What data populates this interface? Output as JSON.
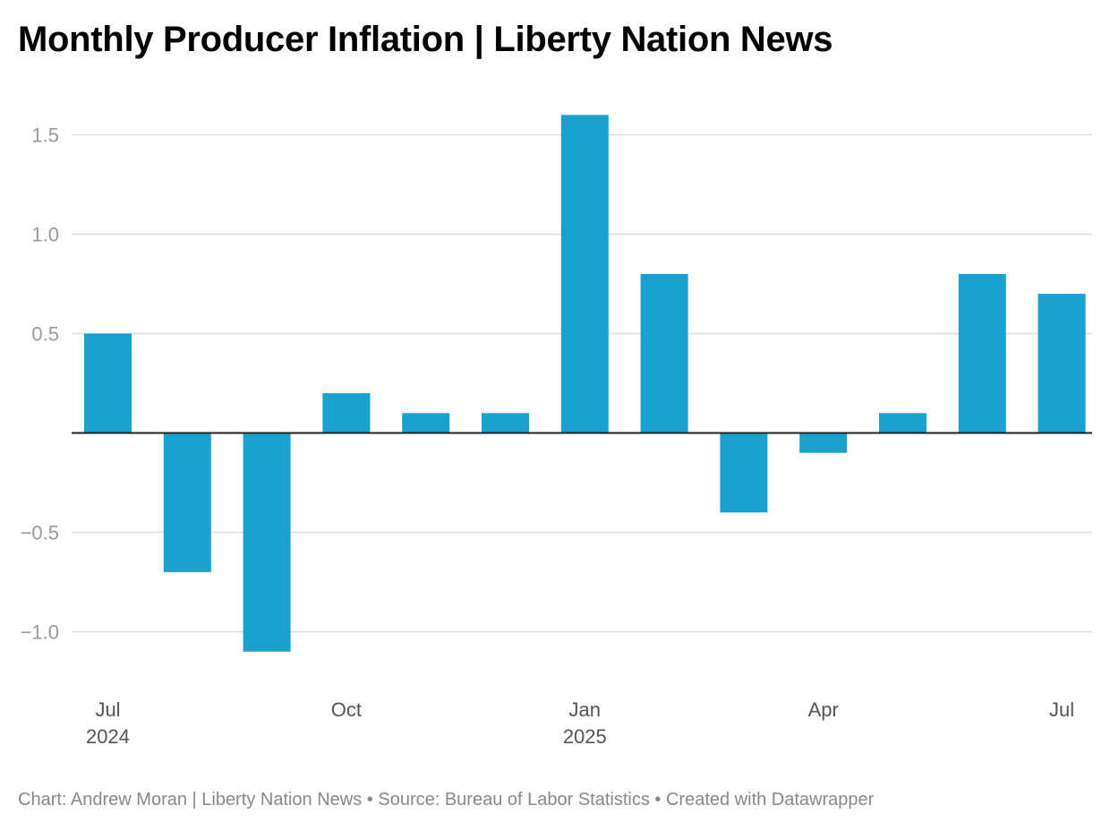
{
  "title": "Monthly Producer Inflation | Liberty Nation News",
  "footer": "Chart: Andrew Moran | Liberty Nation News • Source: Bureau of Labor Statistics • Created with Datawrapper",
  "colors": {
    "bar": "#1aa1cf",
    "grid": "#dddddd",
    "baseline": "#222222"
  },
  "chart_data": {
    "type": "bar",
    "title": "Monthly Producer Inflation | Liberty Nation News",
    "categories": [
      "2024-07",
      "2024-08",
      "2024-09",
      "2024-10",
      "2024-11",
      "2024-12",
      "2025-01",
      "2025-02",
      "2025-03",
      "2025-04",
      "2025-05",
      "2025-06",
      "2025-07"
    ],
    "values": [
      0.5,
      -0.7,
      -1.1,
      0.2,
      0.1,
      0.1,
      1.6,
      0.8,
      -0.4,
      -0.1,
      0.1,
      0.8,
      0.7
    ],
    "yticks": [
      {
        "value": 1.5,
        "label": "1.5"
      },
      {
        "value": 1.0,
        "label": "1.0"
      },
      {
        "value": 0.5,
        "label": "0.5"
      },
      {
        "value": -0.5,
        "label": "−0.5"
      },
      {
        "value": -1.0,
        "label": "−1.0"
      }
    ],
    "xticks": [
      {
        "index": 0,
        "label": "Jul",
        "year": "2024"
      },
      {
        "index": 3,
        "label": "Oct",
        "year": ""
      },
      {
        "index": 6,
        "label": "Jan",
        "year": "2025"
      },
      {
        "index": 9,
        "label": "Apr",
        "year": ""
      },
      {
        "index": 12,
        "label": "Jul",
        "year": ""
      }
    ],
    "ylim": [
      -1.1,
      1.6
    ],
    "grid": true,
    "legend": "none"
  }
}
